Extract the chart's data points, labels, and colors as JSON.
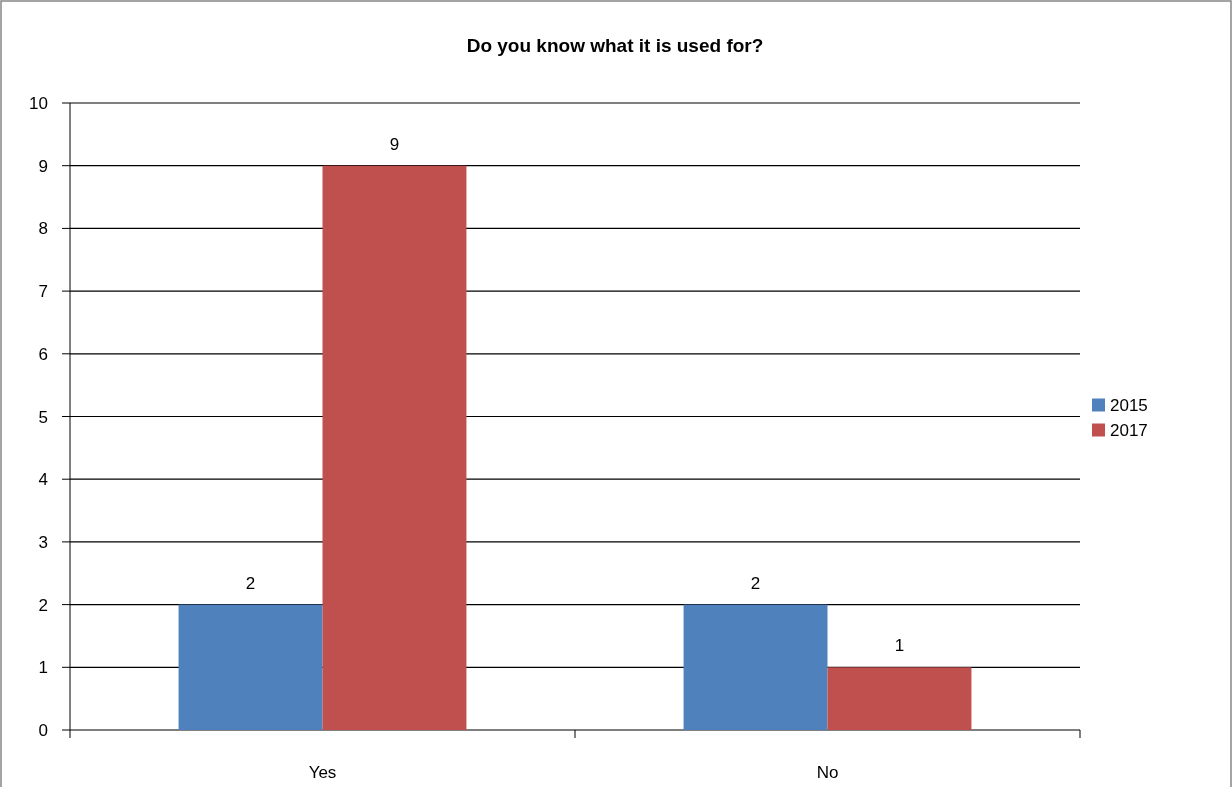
{
  "chart_data": {
    "type": "bar",
    "title": "Do you know what it is used for?",
    "categories": [
      "Yes",
      "No"
    ],
    "series": [
      {
        "name": "2015",
        "color": "#4f81bd",
        "values": [
          2,
          2
        ]
      },
      {
        "name": "2017",
        "color": "#c0504d",
        "values": [
          9,
          1
        ]
      }
    ],
    "ylim": [
      0,
      10
    ],
    "yticks": [
      0,
      1,
      2,
      3,
      4,
      5,
      6,
      7,
      8,
      9,
      10
    ],
    "grid": "y",
    "legend": "right",
    "data_labels": true
  }
}
